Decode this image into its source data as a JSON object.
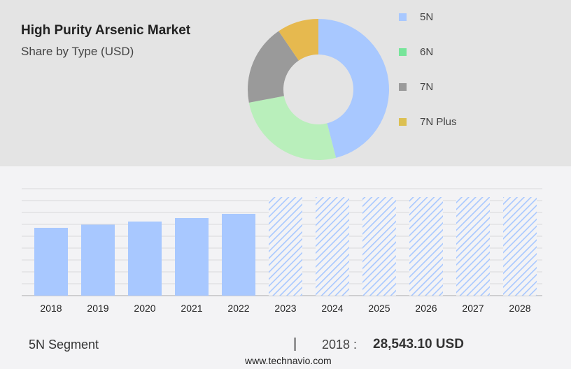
{
  "header": {
    "title": "High Purity Arsenic Market",
    "subtitle": "Share by Type (USD)"
  },
  "chart_data": [
    {
      "type": "pie",
      "style": "donut",
      "slices": [
        {
          "name": "5N",
          "value": 46,
          "color": "#a8c8ff"
        },
        {
          "name": "6N",
          "value": 26,
          "color": "#b9efbb",
          "legend_color": "#77e59a"
        },
        {
          "name": "7N",
          "value": 18.5,
          "color": "#9a9a9a"
        },
        {
          "name": "7N Plus",
          "value": 9.5,
          "color": "#e6b94f",
          "legend_color": "#dcc052"
        }
      ],
      "legend": "right"
    },
    {
      "type": "bar",
      "categories": [
        "2018",
        "2019",
        "2020",
        "2021",
        "2022",
        "2023",
        "2024",
        "2025",
        "2026",
        "2027",
        "2028"
      ],
      "values": [
        28543.1,
        29870,
        31190,
        32660,
        34430,
        null,
        null,
        null,
        null,
        null,
        null
      ],
      "forecast_from": "2023",
      "color": "#a8c8ff",
      "grid": true,
      "ylim": [
        0,
        42000
      ],
      "yaxis_labels": false
    }
  ],
  "footer": {
    "segment": "5N Segment",
    "separator": "|",
    "year": "2018 :",
    "value": "28,543.10 USD",
    "source": "www.technavio.com"
  }
}
